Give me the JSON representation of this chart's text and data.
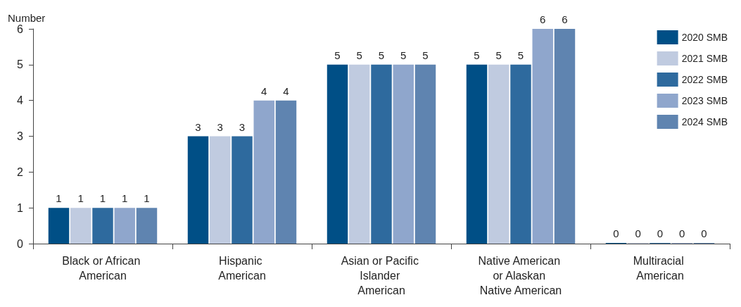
{
  "chart_data": {
    "type": "bar",
    "ylabel": "Number",
    "categories": [
      "Black or African American",
      "Hispanic American",
      "Asian or Pacific Islander American",
      "Native American or Alaskan Native American",
      "Multiracial American"
    ],
    "series": [
      {
        "name": "2020 SMB",
        "color": "#004f86",
        "values": [
          1,
          3,
          5,
          5,
          0
        ]
      },
      {
        "name": "2021 SMB",
        "color": "#c0cbe0",
        "values": [
          1,
          3,
          5,
          5,
          0
        ]
      },
      {
        "name": "2022 SMB",
        "color": "#2e6a9e",
        "values": [
          1,
          3,
          5,
          5,
          0
        ]
      },
      {
        "name": "2023 SMB",
        "color": "#8fa6cc",
        "values": [
          1,
          4,
          5,
          6,
          0
        ]
      },
      {
        "name": "2024 SMB",
        "color": "#5f84b0",
        "values": [
          1,
          4,
          5,
          6,
          0
        ]
      }
    ],
    "ylim": [
      0,
      6
    ],
    "yticks": [
      0,
      1,
      2,
      3,
      4,
      5,
      6
    ],
    "grid": false,
    "legend": "top right",
    "data_labels": true
  }
}
